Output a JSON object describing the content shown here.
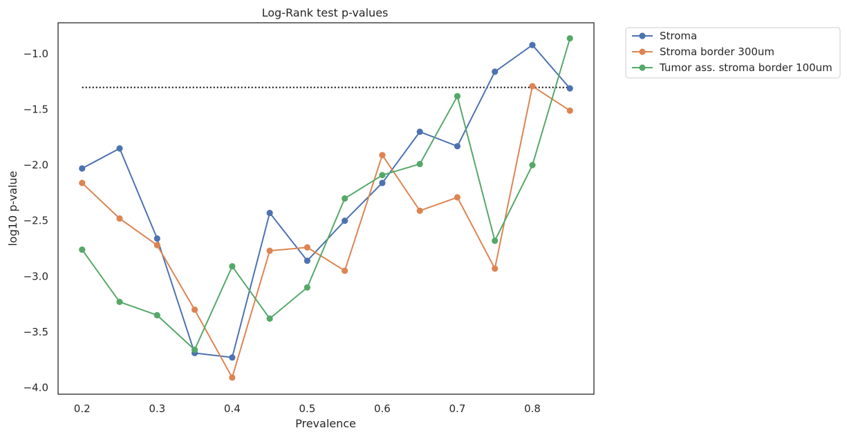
{
  "chart_data": {
    "type": "line",
    "title": "Log-Rank test p-values",
    "xlabel": "Prevalence",
    "ylabel": "log10 p-value",
    "xlim": [
      0.168,
      0.882
    ],
    "ylim": [
      -4.06,
      -0.72
    ],
    "x_ticks": [
      0.2,
      0.3,
      0.4,
      0.5,
      0.6,
      0.7,
      0.8
    ],
    "x_tick_labels": [
      "0.2",
      "0.3",
      "0.4",
      "0.5",
      "0.6",
      "0.7",
      "0.8"
    ],
    "y_ticks": [
      -1.0,
      -1.5,
      -2.0,
      -2.5,
      -3.0,
      -3.5,
      -4.0
    ],
    "y_tick_labels": [
      "−1.0",
      "−1.5",
      "−2.0",
      "−2.5",
      "−3.0",
      "−3.5",
      "−4.0"
    ],
    "grid": false,
    "legend_position": "outside-top-right",
    "x": [
      0.2,
      0.25,
      0.3,
      0.35,
      0.4,
      0.45,
      0.5,
      0.55,
      0.6,
      0.65,
      0.7,
      0.75,
      0.8,
      0.85
    ],
    "series": [
      {
        "name": "Stroma",
        "color": "#4c72b0",
        "values": [
          -2.03,
          -1.85,
          -2.66,
          -3.69,
          -3.73,
          -2.43,
          -2.86,
          -2.5,
          -2.16,
          -1.7,
          -1.83,
          -1.16,
          -0.92,
          -1.31
        ]
      },
      {
        "name": "Stroma border 300um",
        "color": "#dd8452",
        "values": [
          -2.16,
          -2.48,
          -2.72,
          -3.3,
          -3.91,
          -2.77,
          -2.74,
          -2.95,
          -1.91,
          -2.41,
          -2.29,
          -2.93,
          -1.29,
          -1.51
        ]
      },
      {
        "name": "Tumor ass. stroma border 100um",
        "color": "#55a868",
        "values": [
          -2.76,
          -3.23,
          -3.35,
          -3.66,
          -2.91,
          -3.38,
          -3.1,
          -2.3,
          -2.09,
          -1.99,
          -1.38,
          -2.68,
          -2.0,
          -0.86
        ]
      }
    ],
    "reference_line": {
      "y": -1.30103,
      "x_range": [
        0.2,
        0.85
      ],
      "style": "dotted",
      "color": "#000000"
    }
  }
}
